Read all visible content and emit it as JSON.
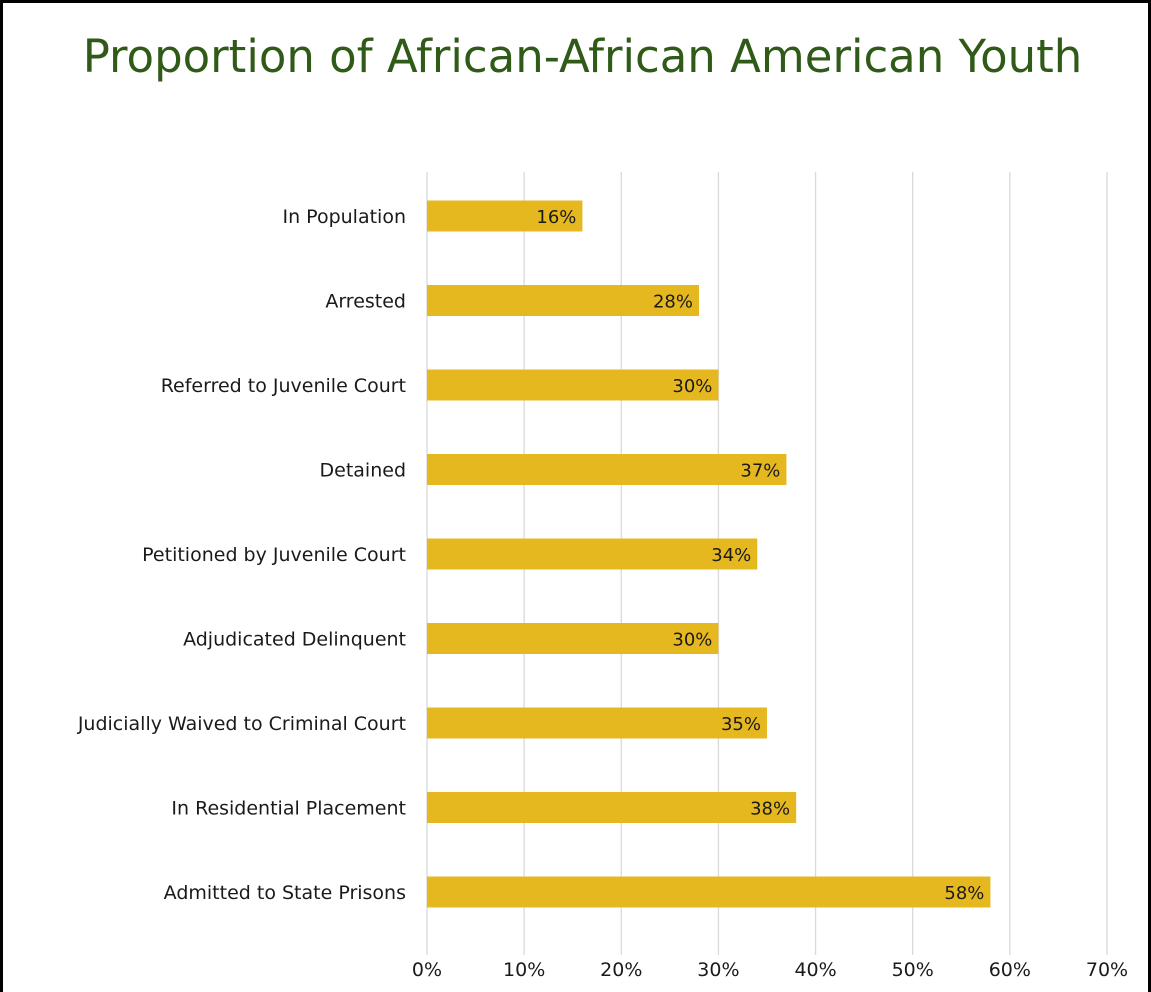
{
  "chart_data": {
    "type": "bar",
    "orientation": "horizontal",
    "title": "Proportion of African-African American Youth",
    "categories": [
      "In Population",
      "Arrested",
      "Referred to Juvenile Court",
      "Detained",
      "Petitioned by Juvenile Court",
      "Adjudicated Delinquent",
      "Judicially Waived to Criminal Court",
      "In Residential Placement",
      "Admitted to State Prisons"
    ],
    "values": [
      16,
      28,
      30,
      37,
      34,
      30,
      35,
      38,
      58
    ],
    "data_labels": [
      "16%",
      "28%",
      "30%",
      "37%",
      "34%",
      "30%",
      "35%",
      "38%",
      "58%"
    ],
    "xlim": [
      0,
      70
    ],
    "xticks": [
      0,
      10,
      20,
      30,
      40,
      50,
      60,
      70
    ],
    "xtick_labels": [
      "0%",
      "10%",
      "20%",
      "30%",
      "40%",
      "50%",
      "60%",
      "70%"
    ],
    "grid": true,
    "legend": "none",
    "colors": {
      "bar": "#e6b820",
      "title": "#2f5a17",
      "grid": "#d9d9d9"
    }
  }
}
